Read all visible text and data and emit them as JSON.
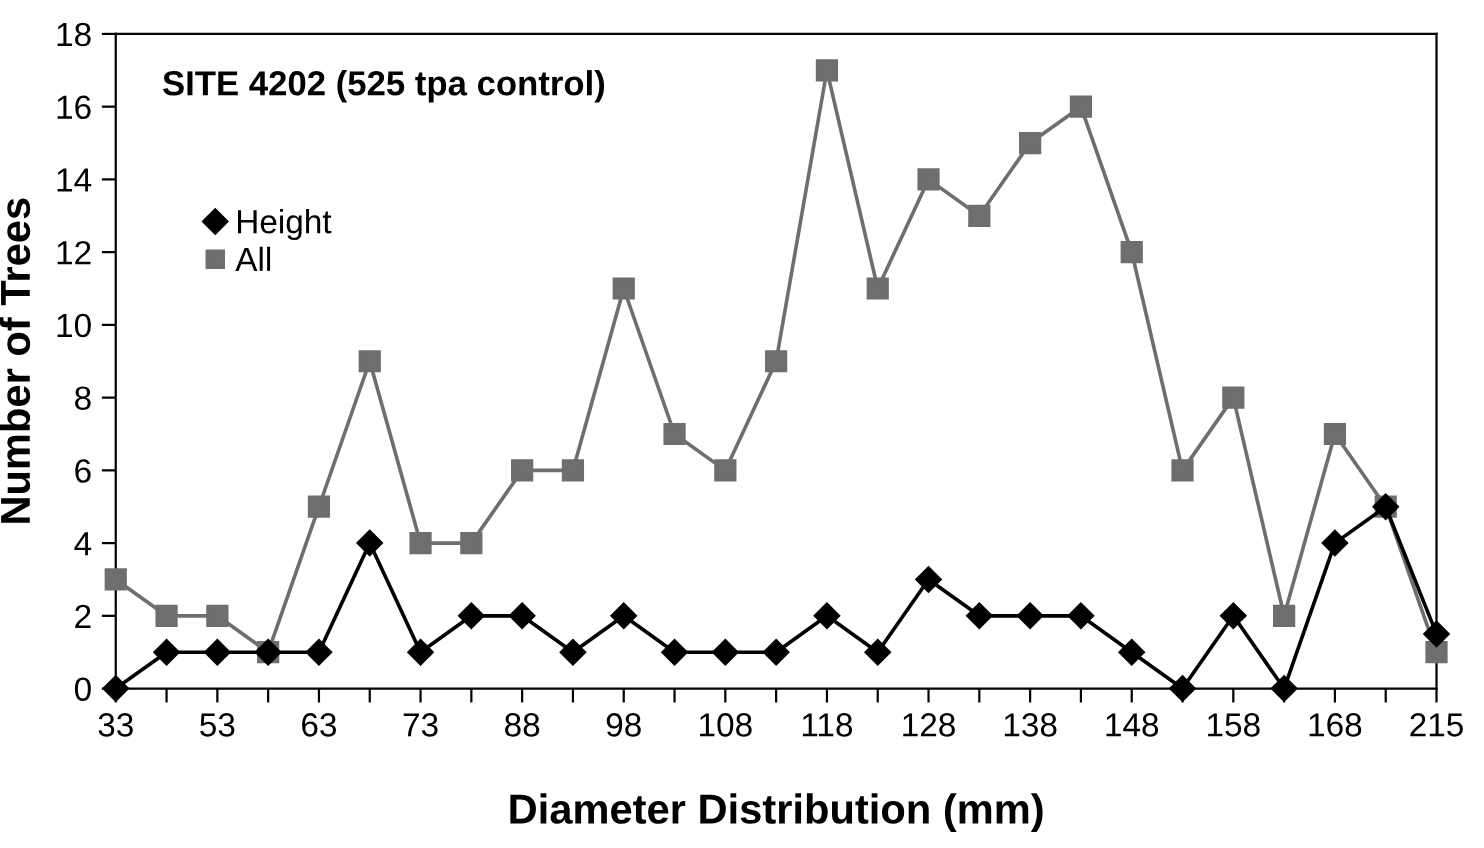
{
  "chart_data": {
    "type": "line",
    "title": "SITE 4202 (525 tpa control)",
    "xlabel": "Diameter Distribution (mm)",
    "ylabel": "Number of Trees",
    "categories": [
      "33",
      null,
      "53",
      null,
      "63",
      null,
      "73",
      null,
      "88",
      null,
      "98",
      null,
      "108",
      null,
      "118",
      null,
      "128",
      null,
      "138",
      null,
      "148",
      null,
      "158",
      null,
      "168",
      null,
      "215"
    ],
    "series": [
      {
        "name": "Height",
        "color": "#000000",
        "marker": "diamond",
        "values": [
          0,
          1,
          1,
          1,
          1,
          4,
          1,
          2,
          2,
          1,
          2,
          1,
          1,
          1,
          2,
          1,
          3,
          2,
          2,
          2,
          1,
          0,
          2,
          0,
          4,
          5,
          1.5
        ]
      },
      {
        "name": "All",
        "color": "#6e6e6e",
        "marker": "square",
        "values": [
          3,
          2,
          2,
          1,
          5,
          9,
          4,
          4,
          6,
          6,
          11,
          7,
          6,
          9,
          17,
          11,
          14,
          13,
          15,
          16,
          12,
          6,
          8,
          2,
          7,
          5,
          1
        ]
      }
    ],
    "ylim": [
      0,
      18
    ],
    "yticks": [
      0,
      2,
      4,
      6,
      8,
      10,
      12,
      14,
      16,
      18
    ],
    "grid": false,
    "legend": "left",
    "line_style": "solid"
  }
}
